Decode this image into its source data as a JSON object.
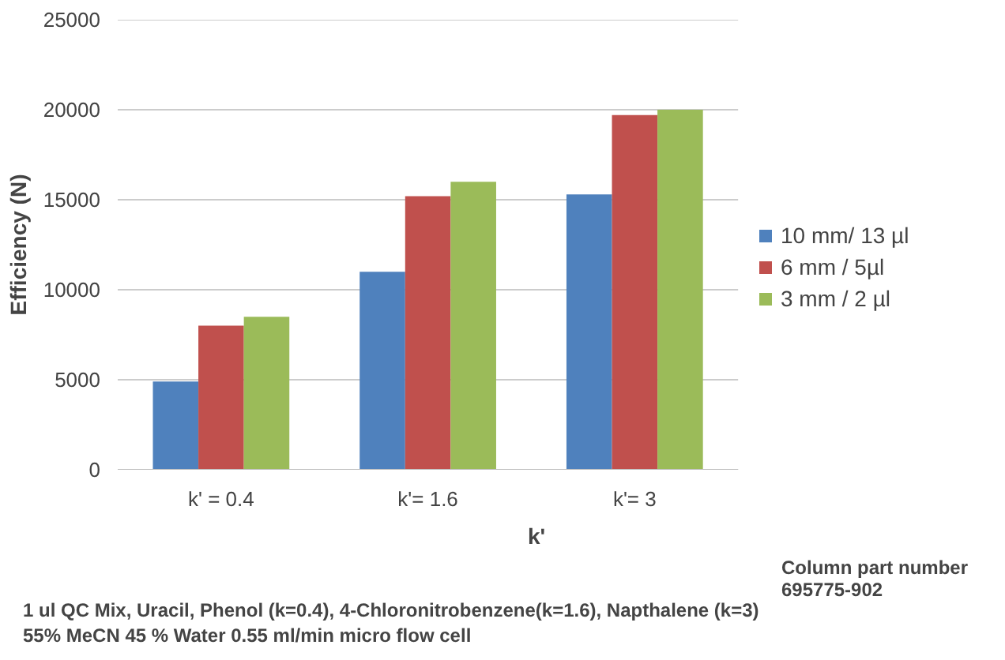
{
  "chart_data": {
    "type": "bar",
    "xlabel": "k'",
    "ylabel": "Efficiency (N)",
    "categories": [
      "k' = 0.4",
      "k'= 1.6",
      "k'= 3"
    ],
    "series": [
      {
        "name": "10 mm/ 13 µl",
        "color": "#4f81bd",
        "values": [
          4900,
          11000,
          15300
        ]
      },
      {
        "name": "6 mm / 5µl",
        "color": "#c0504d",
        "values": [
          8000,
          15200,
          19700
        ]
      },
      {
        "name": "3 mm / 2 µl",
        "color": "#9bbb59",
        "values": [
          8500,
          16000,
          20000
        ]
      }
    ],
    "ylim": [
      0,
      25000
    ],
    "yticks": [
      0,
      5000,
      10000,
      15000,
      20000,
      25000
    ],
    "grid": "y",
    "legend": "right",
    "annotations": [
      "Column part number\n695775-902",
      "1 ul QC Mix, Uracil, Phenol (k=0.4), 4-Chloronitrobenzene(k=1.6), Napthalene (k=3)\n55% MeCN 45 % Water 0.55 ml/min micro flow cell"
    ]
  }
}
